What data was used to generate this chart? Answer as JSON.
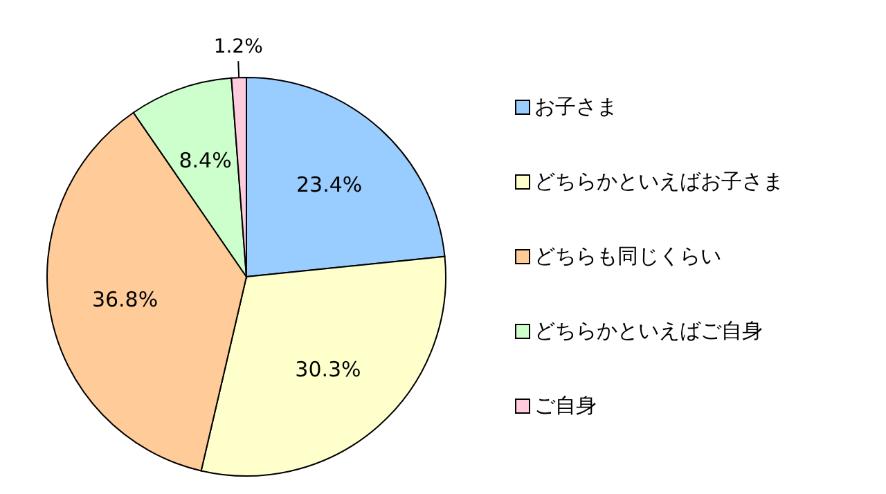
{
  "chart_data": {
    "type": "pie",
    "categories": [
      "お子さま",
      "どちらかといえばお子さま",
      "どちらも同じくらい",
      "どちらかといえばご自身",
      "ご自身"
    ],
    "values": [
      23.4,
      30.3,
      36.8,
      8.4,
      1.2
    ],
    "colors": [
      "#99ccff",
      "#ffffcc",
      "#ffcc99",
      "#ccffcc",
      "#ffccdd"
    ],
    "value_labels": [
      "23.4%",
      "30.3%",
      "36.8%",
      "8.4%",
      "1.2%"
    ],
    "legend": "right"
  }
}
